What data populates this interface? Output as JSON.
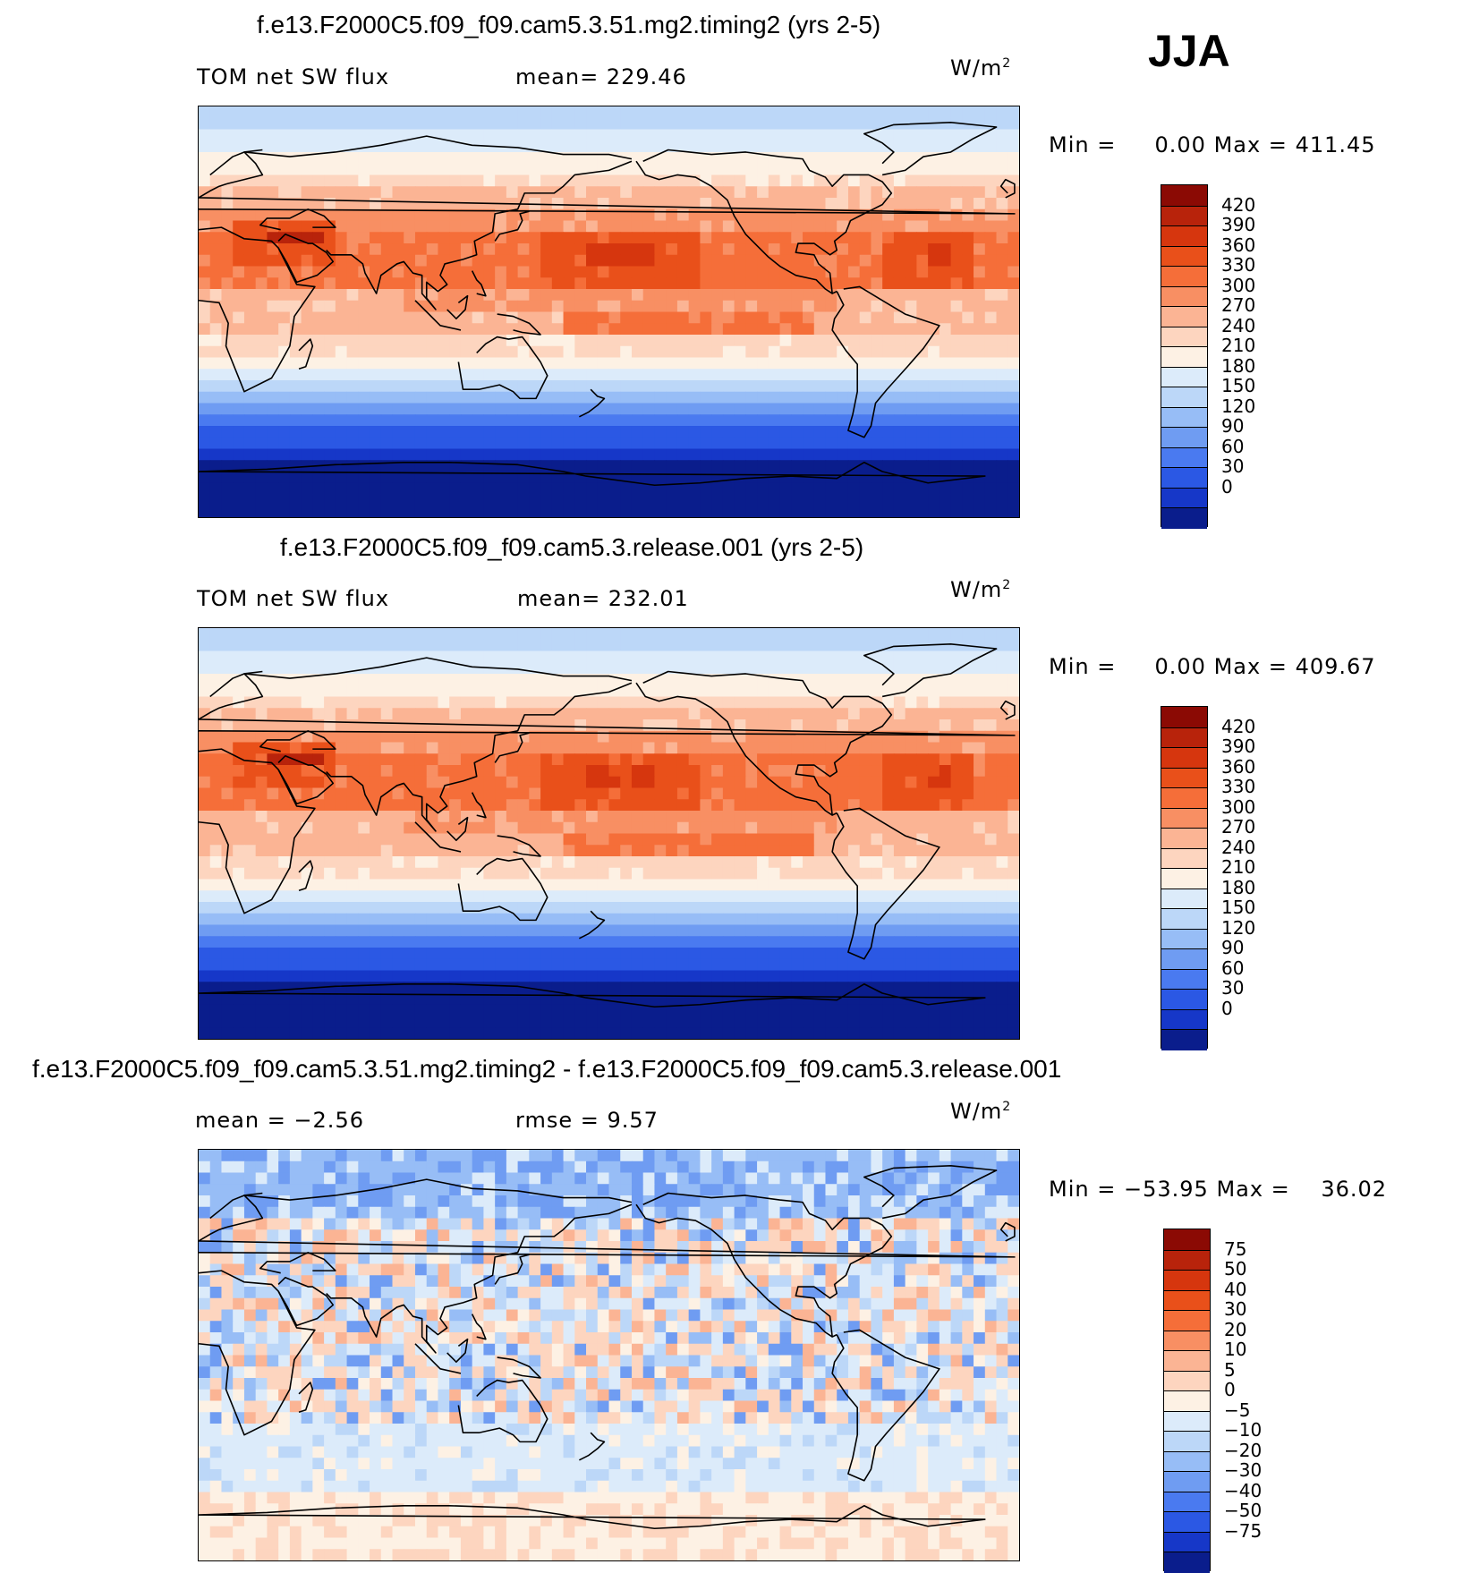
{
  "season": "JJA",
  "panels": [
    {
      "title": "f.e13.F2000C5.f09_f09.cam5.3.51.mg2.timing2 (yrs 2-5)",
      "left_text": "TOM net SW flux",
      "mid_text": "mean= 229.46",
      "unit": "W/m",
      "unit_sup": "2",
      "minmax": {
        "min_label": "Min =",
        "min": "0.00",
        "max_label": "Max =",
        "max": "411.45"
      },
      "colorbar": {
        "labels": [
          "420",
          "390",
          "360",
          "330",
          "300",
          "270",
          "240",
          "210",
          "180",
          "150",
          "120",
          "90",
          "60",
          "30",
          "0"
        ],
        "colors": [
          "#8b0a04",
          "#b8230b",
          "#d6360e",
          "#e9501a",
          "#f56e39",
          "#f88f63",
          "#fbb494",
          "#fdd5bf",
          "#fdf1e4",
          "#dcebfa",
          "#bcd7f8",
          "#97bdf6",
          "#6f9cf2",
          "#4a7af0",
          "#2b58e4",
          "#1637c8",
          "#0a1d8c"
        ]
      },
      "field": "abs"
    },
    {
      "title": "f.e13.F2000C5.f09_f09.cam5.3.release.001 (yrs 2-5)",
      "left_text": "TOM net SW flux",
      "mid_text": "mean= 232.01",
      "unit": "W/m",
      "unit_sup": "2",
      "minmax": {
        "min_label": "Min =",
        "min": "0.00",
        "max_label": "Max =",
        "max": "409.67"
      },
      "colorbar": {
        "labels": [
          "420",
          "390",
          "360",
          "330",
          "300",
          "270",
          "240",
          "210",
          "180",
          "150",
          "120",
          "90",
          "60",
          "30",
          "0"
        ],
        "colors": [
          "#8b0a04",
          "#b8230b",
          "#d6360e",
          "#e9501a",
          "#f56e39",
          "#f88f63",
          "#fbb494",
          "#fdd5bf",
          "#fdf1e4",
          "#dcebfa",
          "#bcd7f8",
          "#97bdf6",
          "#6f9cf2",
          "#4a7af0",
          "#2b58e4",
          "#1637c8",
          "#0a1d8c"
        ]
      },
      "field": "abs"
    },
    {
      "title": "f.e13.F2000C5.f09_f09.cam5.3.51.mg2.timing2 - f.e13.F2000C5.f09_f09.cam5.3.release.001",
      "left_text": "mean =   −2.56",
      "mid_text": "rmse =    9.57",
      "unit": "W/m",
      "unit_sup": "2",
      "minmax": {
        "min_label": "Min =",
        "min": "−53.95",
        "max_label": "Max =",
        "max": "36.02"
      },
      "colorbar": {
        "labels": [
          "75",
          "50",
          "40",
          "30",
          "20",
          "10",
          "5",
          "0",
          "−5",
          "−10",
          "−20",
          "−30",
          "−40",
          "−50",
          "−75"
        ],
        "colors": [
          "#8b0a04",
          "#b8230b",
          "#d6360e",
          "#e9501a",
          "#f56e39",
          "#f88f63",
          "#fbb494",
          "#fdd5bf",
          "#fdf1e4",
          "#dcebfa",
          "#bcd7f8",
          "#97bdf6",
          "#6f9cf2",
          "#4a7af0",
          "#2b58e4",
          "#1637c8",
          "#0a1d8c"
        ]
      },
      "field": "diff"
    }
  ]
}
